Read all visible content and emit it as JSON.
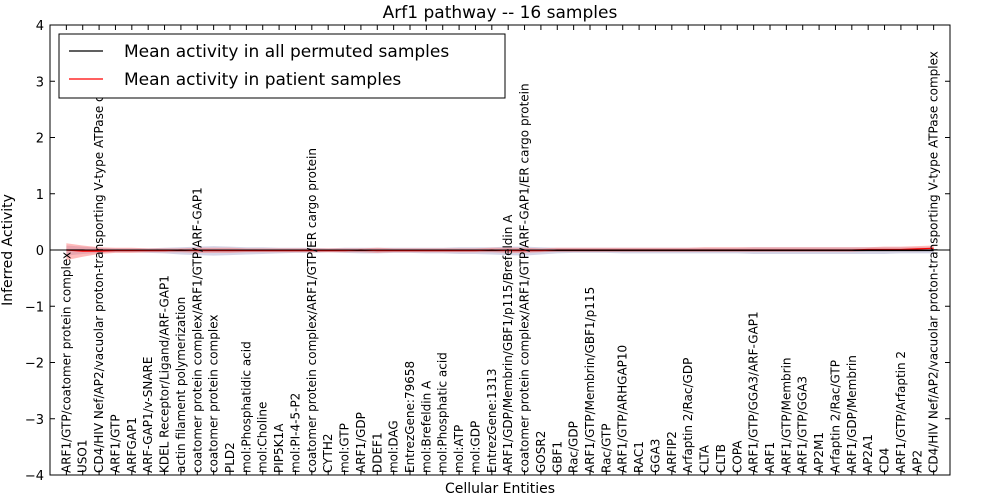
{
  "chart_data": {
    "type": "line",
    "title": "Arf1 pathway -- 16 samples",
    "xlabel": "Cellular Entities",
    "ylabel": "Inferred Activity",
    "ylim": [
      -4,
      4
    ],
    "yticks": [
      "−4",
      "−3",
      "−2",
      "−1",
      "0",
      "1",
      "2",
      "3",
      "4"
    ],
    "grid": false,
    "legend_position": "top-left",
    "categories": [
      "ARF1/GTP/coatomer protein complex",
      "USO1",
      "CD4/HIV Nef/AP2/vacuolar proton-transporting V-type ATPase complex",
      "ARF1/GTP",
      "ARFGAP1",
      "ARF-GAP1/v-SNARE",
      "KDEL Receptor/Ligand/ARF-GAP1",
      "actin filament polymerization",
      "coatomer protein complex/ARF1/GTP/ARF-GAP1",
      "coatomer protein complex",
      "PLD2",
      "mol:Phosphatidic acid",
      "mol:Choline",
      "PIP5K1A",
      "mol:PI-4-5-P2",
      "coatomer protein complex/ARF1/GTP/ER cargo protein",
      "CYTH2",
      "mol:GTP",
      "ARF1/GDP",
      "DDEF1",
      "mol:DAG",
      "EntrezGene:79658",
      "mol:Brefeldin A",
      "mol:Phosphatic acid",
      "mol:ATP",
      "mol:GDP",
      "EntrezGene:1313",
      "ARF1/GDP/Membrin/GBF1/p115/Brefeldin A",
      "coatomer protein complex/ARF1/GTP/ARF-GAP1/ER cargo protein",
      "GOSR2",
      "GBF1",
      "Rac/GDP",
      "ARF1/GTP/Membrin/GBF1/p115",
      "Rac/GTP",
      "ARF1/GTP/ARHGAP10",
      "RAC1",
      "GGA3",
      "ARFIP2",
      "Arfaptin 2/Rac/GDP",
      "CLTA",
      "CLTB",
      "COPA",
      "ARF1/GTP/GGA3/ARF-GAP1",
      "ARF1",
      "ARF1/GTP/Membrin",
      "ARF1/GTP/GGA3",
      "AP2M1",
      "Arfaptin 2/Rac/GTP",
      "ARF1/GDP/Membrin",
      "AP2A1",
      "CD4",
      "ARF1/GTP/Arfaptin 2",
      "AP2",
      "CD4/HIV Nef/AP2/vacuolar proton-transporting V-type ATPase complex"
    ],
    "series": [
      {
        "name": "Mean activity in all permuted samples",
        "color": "#000000",
        "band_color": "#8888bb",
        "values": [
          0.0,
          0.0,
          -0.01,
          -0.01,
          -0.01,
          -0.01,
          -0.01,
          -0.01,
          -0.01,
          -0.01,
          -0.01,
          -0.01,
          -0.01,
          -0.01,
          -0.01,
          -0.01,
          -0.01,
          -0.01,
          -0.01,
          -0.01,
          -0.01,
          -0.01,
          -0.01,
          -0.01,
          -0.01,
          -0.01,
          -0.01,
          -0.01,
          -0.01,
          -0.01,
          -0.01,
          -0.01,
          -0.01,
          -0.01,
          -0.01,
          -0.01,
          -0.01,
          -0.01,
          -0.01,
          -0.01,
          -0.01,
          -0.01,
          -0.01,
          -0.01,
          -0.01,
          -0.01,
          -0.01,
          -0.01,
          -0.01,
          -0.01,
          -0.01,
          -0.01,
          -0.01,
          -0.01
        ],
        "band_low": [
          -0.1,
          -0.07,
          -0.05,
          -0.04,
          -0.04,
          -0.05,
          -0.06,
          -0.08,
          -0.09,
          -0.1,
          -0.09,
          -0.08,
          -0.07,
          -0.06,
          -0.05,
          -0.05,
          -0.04,
          -0.05,
          -0.06,
          -0.06,
          -0.05,
          -0.05,
          -0.06,
          -0.06,
          -0.07,
          -0.07,
          -0.08,
          -0.09,
          -0.1,
          -0.08,
          -0.06,
          -0.05,
          -0.05,
          -0.05,
          -0.06,
          -0.06,
          -0.06,
          -0.06,
          -0.06,
          -0.06,
          -0.06,
          -0.06,
          -0.07,
          -0.07,
          -0.07,
          -0.07,
          -0.07,
          -0.07,
          -0.07,
          -0.07,
          -0.07,
          -0.06,
          -0.06,
          -0.06
        ],
        "band_high": [
          0.08,
          0.06,
          0.04,
          0.03,
          0.03,
          0.03,
          0.04,
          0.05,
          0.06,
          0.07,
          0.06,
          0.05,
          0.05,
          0.04,
          0.04,
          0.04,
          0.03,
          0.04,
          0.04,
          0.04,
          0.04,
          0.04,
          0.04,
          0.04,
          0.05,
          0.05,
          0.05,
          0.06,
          0.06,
          0.05,
          0.04,
          0.04,
          0.04,
          0.04,
          0.04,
          0.04,
          0.04,
          0.04,
          0.04,
          0.04,
          0.04,
          0.04,
          0.05,
          0.05,
          0.05,
          0.05,
          0.05,
          0.05,
          0.05,
          0.05,
          0.05,
          0.05,
          0.05,
          0.05
        ]
      },
      {
        "name": "Mean activity in patient samples",
        "color": "#ff0000",
        "band_color": "#ff7777",
        "values": [
          0.0,
          -0.02,
          -0.02,
          -0.01,
          -0.01,
          -0.01,
          -0.01,
          0.0,
          -0.01,
          -0.01,
          -0.01,
          -0.01,
          -0.01,
          -0.01,
          -0.01,
          -0.01,
          -0.01,
          -0.01,
          0.0,
          -0.01,
          -0.01,
          -0.01,
          -0.01,
          -0.01,
          -0.01,
          -0.01,
          0.0,
          -0.01,
          -0.01,
          -0.01,
          0.0,
          0.0,
          0.0,
          0.0,
          0.0,
          0.0,
          0.0,
          0.0,
          0.0,
          0.0,
          0.0,
          0.0,
          0.0,
          0.0,
          0.0,
          0.0,
          0.0,
          0.0,
          0.0,
          0.01,
          0.01,
          0.01,
          0.02,
          0.03
        ],
        "band_low": [
          -0.18,
          -0.12,
          -0.07,
          -0.05,
          -0.05,
          -0.04,
          -0.04,
          -0.04,
          -0.05,
          -0.05,
          -0.05,
          -0.04,
          -0.04,
          -0.04,
          -0.04,
          -0.04,
          -0.04,
          -0.04,
          -0.04,
          -0.05,
          -0.04,
          -0.04,
          -0.04,
          -0.04,
          -0.04,
          -0.04,
          -0.04,
          -0.05,
          -0.05,
          -0.04,
          -0.03,
          -0.03,
          -0.03,
          -0.03,
          -0.03,
          -0.03,
          -0.03,
          -0.03,
          -0.03,
          -0.03,
          -0.03,
          -0.03,
          -0.03,
          -0.03,
          -0.03,
          -0.03,
          -0.03,
          -0.03,
          -0.03,
          -0.02,
          -0.02,
          -0.02,
          -0.02,
          -0.01
        ],
        "band_high": [
          0.12,
          0.08,
          0.05,
          0.04,
          0.04,
          0.03,
          0.03,
          0.03,
          0.04,
          0.04,
          0.04,
          0.03,
          0.03,
          0.03,
          0.03,
          0.03,
          0.03,
          0.03,
          0.03,
          0.04,
          0.03,
          0.03,
          0.03,
          0.03,
          0.03,
          0.03,
          0.04,
          0.04,
          0.04,
          0.03,
          0.04,
          0.04,
          0.04,
          0.04,
          0.04,
          0.04,
          0.04,
          0.04,
          0.04,
          0.05,
          0.05,
          0.05,
          0.05,
          0.05,
          0.05,
          0.05,
          0.05,
          0.05,
          0.05,
          0.05,
          0.06,
          0.06,
          0.07,
          0.08
        ]
      }
    ]
  }
}
